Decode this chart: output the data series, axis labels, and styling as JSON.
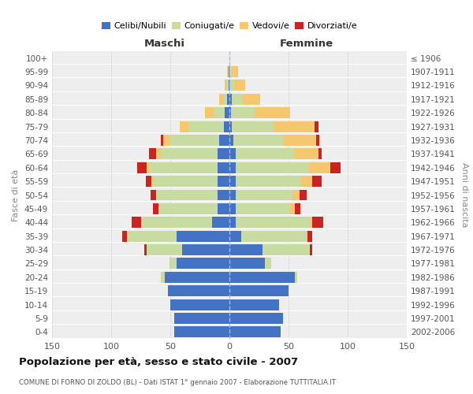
{
  "age_groups": [
    "0-4",
    "5-9",
    "10-14",
    "15-19",
    "20-24",
    "25-29",
    "30-34",
    "35-39",
    "40-44",
    "45-49",
    "50-54",
    "55-59",
    "60-64",
    "65-69",
    "70-74",
    "75-79",
    "80-84",
    "85-89",
    "90-94",
    "95-99",
    "100+"
  ],
  "birth_years": [
    "2002-2006",
    "1997-2001",
    "1992-1996",
    "1987-1991",
    "1982-1986",
    "1977-1981",
    "1972-1976",
    "1967-1971",
    "1962-1966",
    "1957-1961",
    "1952-1956",
    "1947-1951",
    "1942-1946",
    "1937-1941",
    "1932-1936",
    "1927-1931",
    "1922-1926",
    "1917-1921",
    "1912-1916",
    "1907-1911",
    "≤ 1906"
  ],
  "maschi": {
    "celibi": [
      47,
      47,
      50,
      52,
      55,
      45,
      40,
      45,
      15,
      10,
      10,
      10,
      10,
      10,
      9,
      5,
      4,
      2,
      1,
      1,
      0
    ],
    "coniugati": [
      0,
      0,
      0,
      0,
      3,
      5,
      30,
      42,
      60,
      50,
      52,
      55,
      58,
      48,
      42,
      30,
      9,
      3,
      1,
      0,
      0
    ],
    "vedovi": [
      0,
      0,
      0,
      0,
      0,
      1,
      0,
      0,
      0,
      0,
      0,
      1,
      2,
      4,
      5,
      7,
      8,
      4,
      2,
      1,
      0
    ],
    "divorziati": [
      0,
      0,
      0,
      0,
      0,
      0,
      2,
      4,
      8,
      5,
      5,
      5,
      8,
      6,
      2,
      0,
      0,
      0,
      0,
      0,
      0
    ]
  },
  "femmine": {
    "nubili": [
      43,
      45,
      42,
      50,
      55,
      30,
      28,
      10,
      5,
      5,
      5,
      5,
      5,
      5,
      3,
      2,
      1,
      2,
      0,
      0,
      0
    ],
    "coniugate": [
      0,
      0,
      0,
      0,
      2,
      5,
      40,
      55,
      63,
      46,
      48,
      55,
      62,
      50,
      42,
      35,
      20,
      9,
      4,
      2,
      0
    ],
    "vedove": [
      0,
      0,
      0,
      0,
      0,
      0,
      0,
      1,
      2,
      4,
      6,
      10,
      18,
      20,
      28,
      35,
      30,
      15,
      9,
      5,
      0
    ],
    "divorziate": [
      0,
      0,
      0,
      0,
      0,
      0,
      2,
      4,
      9,
      5,
      6,
      8,
      9,
      3,
      3,
      3,
      0,
      0,
      0,
      0,
      0
    ]
  },
  "colors": {
    "celibi_nubili": "#4472c4",
    "coniugati": "#c8dba0",
    "vedovi": "#f5c870",
    "divorziati": "#cc2222"
  },
  "xlim": 150,
  "xticks": [
    -150,
    -100,
    -50,
    0,
    50,
    100,
    150
  ],
  "title": "Popolazione per età, sesso e stato civile - 2007",
  "subtitle": "COMUNE DI FORNO DI ZOLDO (BL) - Dati ISTAT 1° gennaio 2007 - Elaborazione TUTTITALIA.IT",
  "legend_labels": [
    "Celibi/Nubili",
    "Coniugati/e",
    "Vedovi/e",
    "Divorziati/e"
  ],
  "ylabel_left": "Fasce di età",
  "ylabel_right": "Anni di nascita",
  "xlabel_maschi": "Maschi",
  "xlabel_femmine": "Femmine",
  "bg_color": "#eeeeee",
  "grid_color": "#cccccc",
  "center_line_color": "#aabbdd"
}
